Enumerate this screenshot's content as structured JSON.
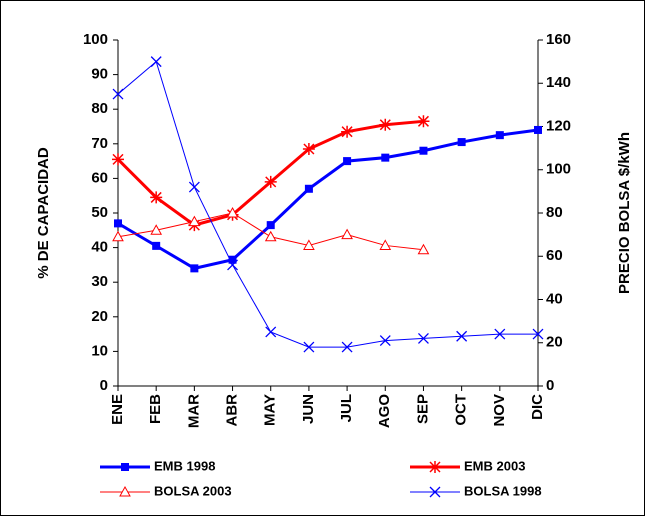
{
  "chart_data": {
    "type": "line",
    "categories": [
      "ENE",
      "FEB",
      "MAR",
      "ABR",
      "MAY",
      "JUN",
      "JUL",
      "AGO",
      "SEP",
      "OCT",
      "NOV",
      "DIC"
    ],
    "ylabel": "% DE CAPACIDAD",
    "y2label": "PRECIO BOLSA $/kWh",
    "ylim": [
      0,
      100
    ],
    "yticks": [
      0,
      10,
      20,
      30,
      40,
      50,
      60,
      70,
      80,
      90,
      100
    ],
    "y2lim": [
      0,
      160
    ],
    "y2ticks": [
      0,
      20,
      40,
      60,
      80,
      100,
      120,
      140,
      160
    ],
    "grid": false,
    "legend": "bottom",
    "series": [
      {
        "name": "EMB 1998",
        "color": "#0000ff",
        "marker": "square",
        "width": 3,
        "values": [
          47,
          40.5,
          34,
          36.5,
          46.5,
          57,
          65,
          66,
          68,
          70.5,
          72.5,
          74
        ]
      },
      {
        "name": "EMB 2003",
        "color": "#ff0000",
        "marker": "star",
        "width": 3,
        "values": [
          65.5,
          54.5,
          46.5,
          49.5,
          59,
          68.5,
          73.5,
          75.5,
          76.5,
          null,
          null,
          null
        ]
      },
      {
        "name": "BOLSA 2003",
        "color": "#ff0000",
        "marker": "triangle",
        "width": 1,
        "axis": "y2",
        "values": [
          69,
          72,
          76,
          80,
          69,
          65,
          70,
          65,
          63,
          null,
          null,
          null
        ]
      },
      {
        "name": "BOLSA 1998",
        "color": "#0000ff",
        "marker": "x",
        "width": 1,
        "axis": "y2",
        "values": [
          135,
          150,
          92,
          56,
          25,
          18,
          18,
          21,
          22,
          23,
          24,
          24
        ]
      }
    ]
  }
}
